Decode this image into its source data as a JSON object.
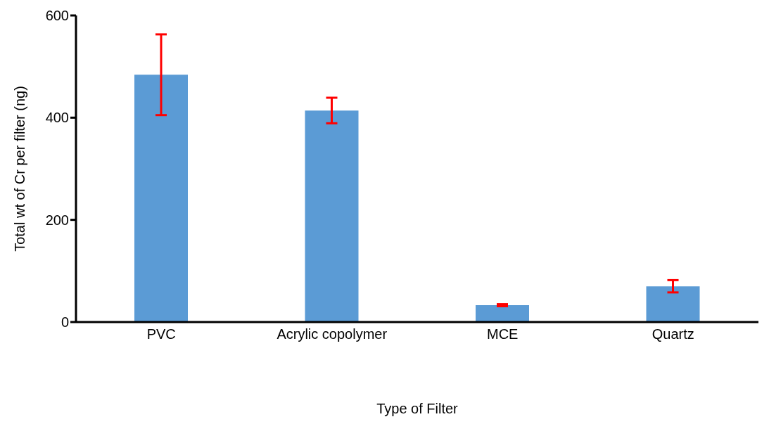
{
  "chart_data": {
    "type": "bar",
    "xlabel": "Type of Filter",
    "ylabel": "Total wt of Cr per filter (ng)",
    "categories": [
      "PVC",
      "Acrylic copolymer",
      "MCE",
      "Quartz"
    ],
    "values": [
      484,
      414,
      33,
      70
    ],
    "errors": [
      79,
      25,
      2,
      12
    ],
    "color": "#5b9bd5",
    "ylim": [
      0,
      600
    ],
    "yticks": [
      0,
      200,
      400,
      600
    ],
    "grid": false
  }
}
